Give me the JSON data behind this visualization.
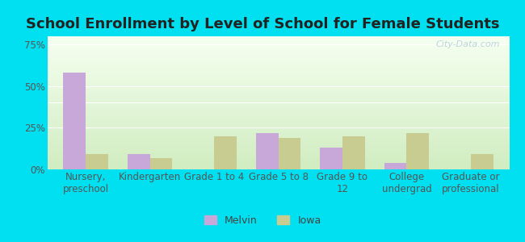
{
  "title": "School Enrollment by Level of School for Female Students",
  "categories": [
    "Nursery,\npreschool",
    "Kindergarten",
    "Grade 1 to 4",
    "Grade 5 to 8",
    "Grade 9 to\n12",
    "College\nundergrad",
    "Graduate or\nprofessional"
  ],
  "melvin": [
    58,
    9,
    0,
    22,
    13,
    4,
    0
  ],
  "iowa": [
    9,
    7,
    20,
    19,
    20,
    22,
    9
  ],
  "melvin_color": "#c8a8d8",
  "iowa_color": "#c8cc90",
  "bar_width": 0.35,
  "ylim": [
    0,
    80
  ],
  "yticks": [
    0,
    25,
    50,
    75
  ],
  "ytick_labels": [
    "0%",
    "25%",
    "50%",
    "75%"
  ],
  "legend_labels": [
    "Melvin",
    "Iowa"
  ],
  "background_outer": "#00e0f0",
  "grad_top": "#f5fff0",
  "grad_bottom": "#d0ecc0",
  "grid_color": "#ffffff",
  "title_fontsize": 13,
  "axis_label_fontsize": 8.5,
  "legend_fontsize": 9,
  "watermark_text": "City-Data.com",
  "watermark_color": "#b0c8d8",
  "watermark_alpha": 0.8
}
